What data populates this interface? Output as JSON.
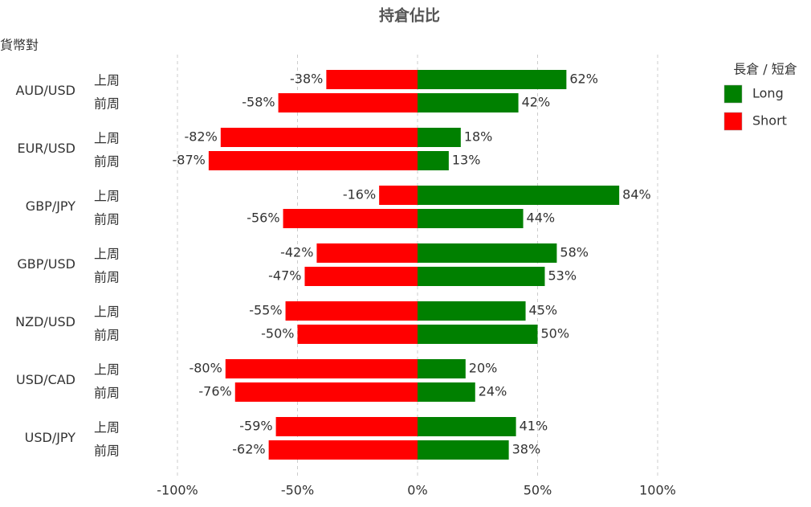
{
  "chart_data": {
    "type": "diverging-bar",
    "title": "持倉佔比",
    "y_label": "貨幣對",
    "legend_title": "長倉 / 短倉",
    "categories": [
      "AUD/USD",
      "EUR/USD",
      "GBP/JPY",
      "GBP/USD",
      "NZD/USD",
      "USD/CAD",
      "USD/JPY"
    ],
    "subcategories": [
      "上周",
      "前周"
    ],
    "series": [
      {
        "name": "Long",
        "color": "#008000",
        "values": [
          [
            62,
            42
          ],
          [
            18,
            13
          ],
          [
            84,
            44
          ],
          [
            58,
            53
          ],
          [
            45,
            50
          ],
          [
            20,
            24
          ],
          [
            41,
            38
          ]
        ],
        "value_labels": [
          [
            "62%",
            "42%"
          ],
          [
            "18%",
            "13%"
          ],
          [
            "84%",
            "44%"
          ],
          [
            "58%",
            "53%"
          ],
          [
            "45%",
            "50%"
          ],
          [
            "20%",
            "24%"
          ],
          [
            "41%",
            "38%"
          ]
        ]
      },
      {
        "name": "Short",
        "color": "#ff0000",
        "values": [
          [
            -38,
            -58
          ],
          [
            -82,
            -87
          ],
          [
            -16,
            -56
          ],
          [
            -42,
            -47
          ],
          [
            -55,
            -50
          ],
          [
            -80,
            -76
          ],
          [
            -59,
            -62
          ]
        ],
        "value_labels": [
          [
            "-38%",
            "-58%"
          ],
          [
            "-82%",
            "-87%"
          ],
          [
            "-16%",
            "-56%"
          ],
          [
            "-42%",
            "-47%"
          ],
          [
            "-55%",
            "-50%"
          ],
          [
            "-80%",
            "-76%"
          ],
          [
            "-59%",
            "-62%"
          ]
        ]
      }
    ],
    "xlim": [
      -100,
      100
    ],
    "xticks": [
      {
        "value": -100,
        "label": "-100%"
      },
      {
        "value": -50,
        "label": "-50%"
      },
      {
        "value": 0,
        "label": "0%"
      },
      {
        "value": 50,
        "label": "50%"
      },
      {
        "value": 100,
        "label": "100%"
      }
    ],
    "grid": true,
    "legend": "right"
  }
}
